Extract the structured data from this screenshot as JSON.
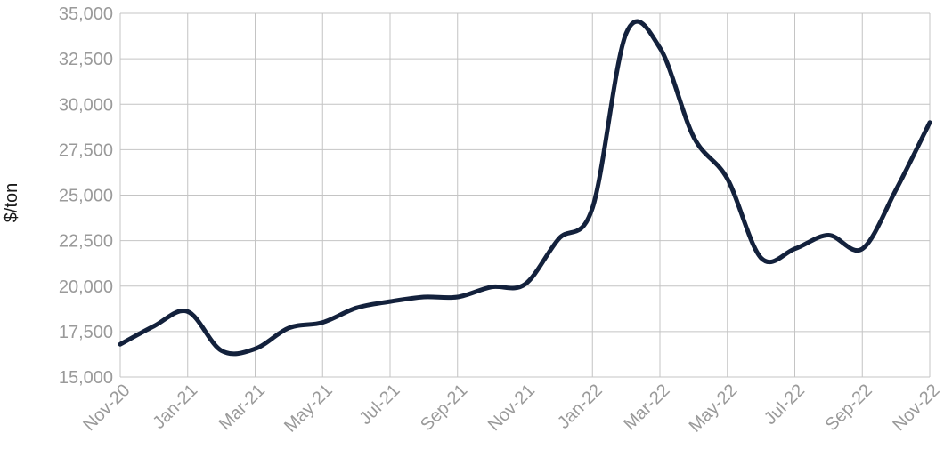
{
  "chart_data": {
    "type": "line",
    "title": "",
    "xlabel": "",
    "ylabel": "$/ton",
    "ylim": [
      15000,
      35000
    ],
    "yticks": [
      15000,
      17500,
      20000,
      22500,
      25000,
      27500,
      30000,
      32500,
      35000
    ],
    "ytick_labels": [
      "15,000",
      "17,500",
      "20,000",
      "22,500",
      "25,000",
      "27,500",
      "30,000",
      "32,500",
      "35,000"
    ],
    "xtick_labels": [
      "Nov-20",
      "Jan-21",
      "Mar-21",
      "May-21",
      "Jul-21",
      "Sep-21",
      "Nov-21",
      "Jan-22",
      "Mar-22",
      "May-22",
      "Jul-22",
      "Sep-22",
      "Nov-22"
    ],
    "grid": true,
    "line_color": "#13213c",
    "x": [
      "Nov-20",
      "Dec-20",
      "Jan-21",
      "Feb-21",
      "Mar-21",
      "Apr-21",
      "May-21",
      "Jun-21",
      "Jul-21",
      "Aug-21",
      "Sep-21",
      "Oct-21",
      "Nov-21",
      "Dec-21",
      "Jan-22",
      "Feb-22",
      "Mar-22",
      "Apr-22",
      "May-22",
      "Jun-22",
      "Jul-22",
      "Aug-22",
      "Sep-22",
      "Oct-22",
      "Nov-22"
    ],
    "values": [
      16800,
      17800,
      18600,
      16450,
      16550,
      17700,
      18000,
      18800,
      19150,
      19400,
      19400,
      19950,
      20100,
      22600,
      24300,
      33900,
      33100,
      28200,
      25900,
      21550,
      22050,
      22800,
      22050,
      25300,
      29000
    ]
  }
}
